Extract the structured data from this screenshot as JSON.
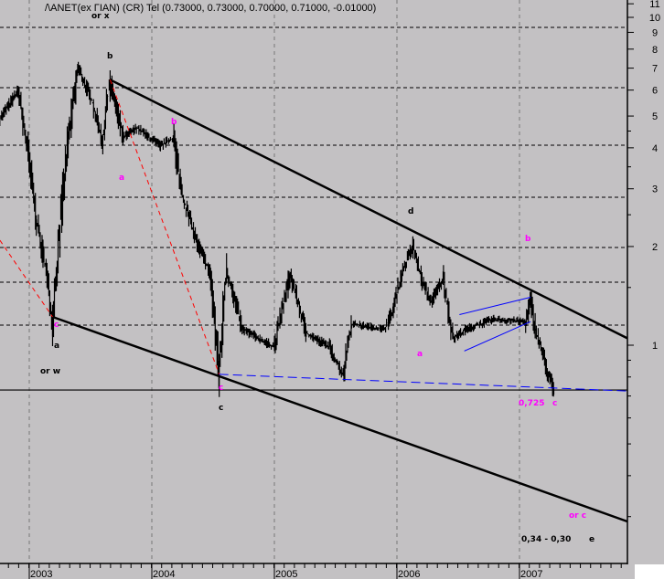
{
  "chart_data": {
    "type": "line",
    "title": "/\\ANET(ex ΓΙΑΝ) (CR) Tel (0.73000, 0.73000, 0.70000, 0.71000, -0.01000)",
    "y_scale": "log",
    "ylim": [
      0.22,
      11.5
    ],
    "xlim": [
      2002.76,
      2007.88
    ],
    "grid": true,
    "y_ticks": [
      "11",
      "10",
      "9",
      "8",
      "7",
      "6",
      "5",
      "4",
      "3",
      "2",
      "1"
    ],
    "y_tick_values": [
      11,
      10,
      9,
      8,
      7,
      6,
      5,
      4,
      3,
      2,
      1
    ],
    "x_ticks": [
      "2003",
      "2004",
      "2005",
      "2006",
      "2007"
    ],
    "x_tick_values": [
      2003,
      2004,
      2005,
      2006,
      2007
    ],
    "series": [
      {
        "color": "#000000",
        "x": [
          2002.76,
          2002.91,
          2002.99,
          2003.06,
          2003.13,
          2003.19,
          2003.25,
          2003.32,
          2003.4,
          2003.51,
          2003.6,
          2003.66,
          2003.77,
          2003.88,
          2004.07,
          2004.18,
          2004.25,
          2004.37,
          2004.48,
          2004.55,
          2004.61,
          2004.74,
          2004.93,
          2005.0,
          2005.13,
          2005.26,
          2005.45,
          2005.56,
          2005.63,
          2005.9,
          2005.97,
          2006.04,
          2006.13,
          2006.21,
          2006.28,
          2006.38,
          2006.46,
          2006.57,
          2006.79,
          2007.05,
          2007.09,
          2007.13,
          2007.24,
          2007.28
        ],
        "values": [
          4.9,
          5.95,
          3.9,
          2.4,
          1.76,
          1.21,
          2.27,
          4.3,
          7.0,
          5.6,
          4.2,
          6.4,
          4.3,
          4.6,
          4.05,
          4.3,
          2.85,
          2.06,
          1.65,
          0.815,
          1.7,
          1.12,
          1.02,
          0.99,
          1.65,
          1.09,
          0.99,
          0.81,
          1.16,
          1.12,
          1.28,
          1.65,
          2.0,
          1.55,
          1.36,
          1.6,
          1.05,
          1.12,
          1.2,
          1.18,
          1.36,
          1.12,
          0.81,
          0.725
        ]
      }
    ],
    "trendlines": [
      {
        "style": "solid-thick",
        "color": "#000000",
        "from": [
          2003.66,
          6.45
        ],
        "to": [
          2007.88,
          1.05
        ]
      },
      {
        "style": "solid-thick",
        "color": "#000000",
        "from": [
          2003.19,
          1.22
        ],
        "to": [
          2007.88,
          0.29
        ]
      },
      {
        "style": "solid",
        "color": "#000000",
        "from": [
          2002.76,
          0.73
        ],
        "to": [
          2007.88,
          0.73
        ]
      },
      {
        "style": "dashed",
        "color": "#ff0000",
        "from": [
          2002.76,
          2.09
        ],
        "to": [
          2003.19,
          1.22
        ]
      },
      {
        "style": "dashed",
        "color": "#ff0000",
        "from": [
          2003.66,
          6.45
        ],
        "to": [
          2004.55,
          0.815
        ]
      },
      {
        "style": "dashed",
        "color": "#0000ff",
        "from": [
          2004.55,
          0.815
        ],
        "to": [
          2007.88,
          0.725
        ]
      },
      {
        "style": "solid",
        "color": "#0000ff",
        "from": [
          2006.51,
          1.24
        ],
        "to": [
          2007.09,
          1.4
        ]
      },
      {
        "style": "solid",
        "color": "#0000ff",
        "from": [
          2006.55,
          0.96
        ],
        "to": [
          2007.09,
          1.18
        ]
      }
    ],
    "annotations": [
      {
        "text": "or x",
        "color": "#000000"
      },
      {
        "text": "b",
        "color": "#000000"
      },
      {
        "text": "b",
        "color": "#ff00ff"
      },
      {
        "text": "a",
        "color": "#ff00ff"
      },
      {
        "text": "c",
        "color": "#ff00ff"
      },
      {
        "text": "a",
        "color": "#000000"
      },
      {
        "text": "or w",
        "color": "#000000"
      },
      {
        "text": "c",
        "color": "#ff00ff"
      },
      {
        "text": "c",
        "color": "#000000"
      },
      {
        "text": "d",
        "color": "#000000"
      },
      {
        "text": "a",
        "color": "#ff00ff"
      },
      {
        "text": "b",
        "color": "#ff00ff"
      },
      {
        "text": "0,725",
        "color": "#ff00ff"
      },
      {
        "text": "c",
        "color": "#ff00ff"
      },
      {
        "text": "or c",
        "color": "#ff00ff"
      },
      {
        "text": "0,34 - 0,30",
        "color": "#000000"
      },
      {
        "text": "e",
        "color": "#000000"
      }
    ]
  }
}
